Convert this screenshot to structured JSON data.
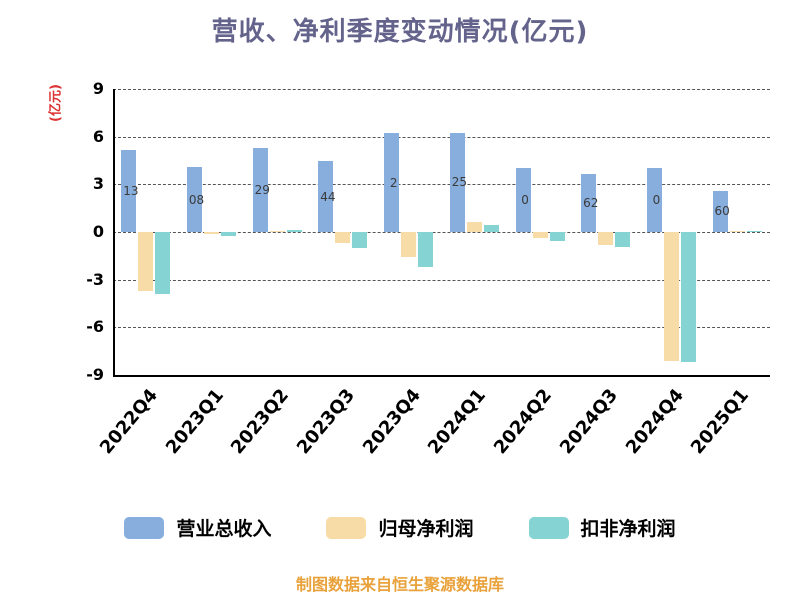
{
  "title": "营收、净利季度变动情况(亿元)",
  "y_axis": {
    "unit_label": "(亿元)"
  },
  "footer": "制图数据来自恒生聚源数据库",
  "legend": [
    {
      "label": "营业总收入",
      "color": "#87aedd"
    },
    {
      "label": "归母净利润",
      "color": "#f7dca7"
    },
    {
      "label": "扣非净利润",
      "color": "#85d4d3"
    }
  ],
  "chart_data": {
    "type": "bar",
    "title": "营收、净利季度变动情况(亿元)",
    "ylabel": "(亿元)",
    "categories": [
      "2022Q4",
      "2023Q1",
      "2023Q2",
      "2023Q3",
      "2023Q4",
      "2024Q1",
      "2024Q2",
      "2024Q3",
      "2024Q4",
      "2025Q1"
    ],
    "series": [
      {
        "name": "营业总收入",
        "key": "revenue",
        "color": "#87aedd",
        "values": [
          5.13,
          4.08,
          5.29,
          4.44,
          6.2,
          6.25,
          4.0,
          3.62,
          4.0,
          2.6
        ],
        "visible_labels": [
          "13",
          "08",
          "29",
          "44",
          "2",
          "25",
          "0",
          "62",
          "0",
          "60"
        ]
      },
      {
        "name": "归母净利润",
        "key": "net-profit",
        "color": "#f7dca7",
        "values": [
          -3.7,
          -0.15,
          0.05,
          -0.7,
          -1.6,
          0.65,
          -0.35,
          -0.8,
          -8.1,
          0.05
        ]
      },
      {
        "name": "扣非净利润",
        "key": "non-gaap-net-profit",
        "color": "#85d4d3",
        "values": [
          -3.9,
          -0.25,
          0.1,
          -1.0,
          -2.2,
          0.45,
          -0.55,
          -0.95,
          -8.2,
          0.03
        ]
      }
    ],
    "ylim": [
      -9,
      9
    ],
    "yticks": [
      9,
      6,
      3,
      0,
      -3,
      -6,
      -9
    ],
    "grid": "horizontal-dashed",
    "legend_position": "bottom",
    "source_note": "制图数据来自恒生聚源数据库"
  }
}
